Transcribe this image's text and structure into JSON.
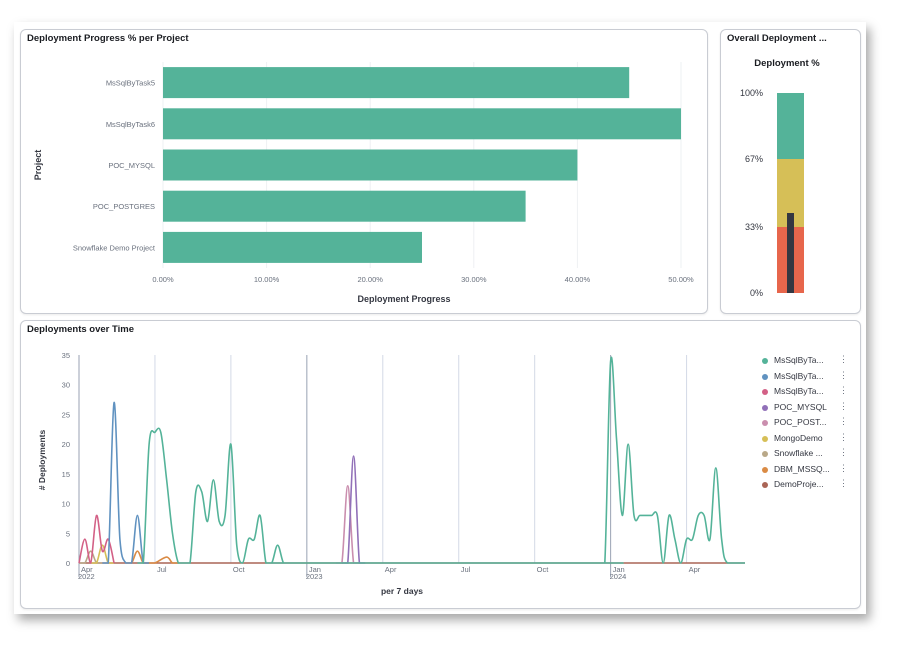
{
  "panels": {
    "progress": {
      "title": "Deployment Progress % per Project"
    },
    "overall": {
      "title": "Overall Deployment ...",
      "gauge_title": "Deployment %"
    },
    "time": {
      "title": "Deployments over Time"
    }
  },
  "colors": {
    "bar": "#54b399",
    "gauge_green": "#54b399",
    "gauge_yellow": "#d6bf57",
    "gauge_red": "#e7664c",
    "gauge_needle": "#343741"
  },
  "chart_data": [
    {
      "type": "bar",
      "orientation": "horizontal",
      "categories": [
        "MsSqlByTask5",
        "MsSqlByTask6",
        "POC_MYSQL",
        "POC_POSTGRES",
        "Snowflake Demo Project"
      ],
      "values": [
        0.45,
        0.5,
        0.4,
        0.35,
        0.25
      ],
      "xlabel": "Deployment Progress",
      "ylabel": "Project",
      "xlim": [
        0,
        0.5
      ],
      "xticks": [
        "0.00%",
        "10.00%",
        "20.00%",
        "30.00%",
        "40.00%",
        "50.00%"
      ],
      "grid": true
    },
    {
      "type": "gauge",
      "title": "Deployment %",
      "value": 0.4,
      "bands": [
        {
          "from": 0,
          "to": 0.33,
          "color": "#e7664c"
        },
        {
          "from": 0.33,
          "to": 0.67,
          "color": "#d6bf57"
        },
        {
          "from": 0.67,
          "to": 1.0,
          "color": "#54b399"
        }
      ],
      "ticks": [
        "0%",
        "33%",
        "67%",
        "100%"
      ]
    },
    {
      "type": "line",
      "xlabel": "per 7 days",
      "ylabel": "# Deployments",
      "ylim": [
        0,
        35
      ],
      "yticks": [
        0,
        5,
        10,
        15,
        20,
        25,
        30,
        35
      ],
      "x_ticks": [
        {
          "label": "Apr",
          "sub": "2022",
          "w": 0
        },
        {
          "label": "Jul",
          "sub": "",
          "w": 13
        },
        {
          "label": "Oct",
          "sub": "",
          "w": 26
        },
        {
          "label": "Jan",
          "sub": "2023",
          "w": 39
        },
        {
          "label": "Apr",
          "sub": "",
          "w": 52
        },
        {
          "label": "Jul",
          "sub": "",
          "w": 65
        },
        {
          "label": "Oct",
          "sub": "",
          "w": 78
        },
        {
          "label": "Jan",
          "sub": "2024",
          "w": 91
        },
        {
          "label": "Apr",
          "sub": "",
          "w": 104
        }
      ],
      "x_range_weeks": [
        0,
        114
      ],
      "legend_position": "right",
      "series": [
        {
          "name": "MsSqlByTa...",
          "color": "#54b399",
          "points": [
            [
              10,
              0
            ],
            [
              11,
              0
            ],
            [
              12,
              20
            ],
            [
              13,
              22
            ],
            [
              14,
              22
            ],
            [
              15,
              14
            ],
            [
              16,
              5
            ],
            [
              17,
              0
            ],
            [
              18,
              0
            ],
            [
              19,
              0
            ],
            [
              20,
              12
            ],
            [
              21,
              12
            ],
            [
              22,
              7
            ],
            [
              23,
              14
            ],
            [
              24,
              7
            ],
            [
              25,
              8
            ],
            [
              26,
              20
            ],
            [
              27,
              3
            ],
            [
              28,
              0
            ],
            [
              29,
              4
            ],
            [
              30,
              4
            ],
            [
              31,
              8
            ],
            [
              32,
              0
            ],
            [
              33,
              0
            ],
            [
              34,
              3
            ],
            [
              35,
              0
            ],
            [
              36,
              0
            ],
            [
              37,
              0
            ],
            [
              89,
              0
            ],
            [
              90,
              0
            ],
            [
              91,
              34
            ],
            [
              92,
              21
            ],
            [
              93,
              8
            ],
            [
              94,
              20
            ],
            [
              95,
              8
            ],
            [
              96,
              8
            ],
            [
              97,
              8
            ],
            [
              98,
              8
            ],
            [
              99,
              8
            ],
            [
              100,
              0
            ],
            [
              101,
              8
            ],
            [
              102,
              4
            ],
            [
              103,
              0
            ],
            [
              104,
              4
            ],
            [
              105,
              4
            ],
            [
              106,
              8
            ],
            [
              107,
              8
            ],
            [
              108,
              4
            ],
            [
              109,
              16
            ],
            [
              110,
              4
            ],
            [
              111,
              0
            ],
            [
              114,
              0
            ]
          ]
        },
        {
          "name": "MsSqlByTa...",
          "color": "#6092c0",
          "points": [
            [
              4,
              0
            ],
            [
              5,
              0
            ],
            [
              6,
              27
            ],
            [
              7,
              4
            ],
            [
              8,
              0
            ],
            [
              9,
              0
            ],
            [
              10,
              8
            ],
            [
              11,
              0
            ],
            [
              12,
              0
            ]
          ]
        },
        {
          "name": "MsSqlByTa...",
          "color": "#d36086",
          "points": [
            [
              0,
              0
            ],
            [
              1,
              4
            ],
            [
              2,
              0
            ],
            [
              3,
              8
            ],
            [
              4,
              2
            ],
            [
              5,
              4
            ],
            [
              6,
              0
            ]
          ]
        },
        {
          "name": "POC_MYSQL",
          "color": "#9170b8",
          "points": [
            [
              45,
              0
            ],
            [
              46,
              0
            ],
            [
              47,
              18
            ],
            [
              48,
              0
            ],
            [
              49,
              0
            ]
          ]
        },
        {
          "name": "POC_POST...",
          "color": "#ca8eae",
          "points": [
            [
              44,
              0
            ],
            [
              45,
              0
            ],
            [
              46,
              13
            ],
            [
              47,
              0
            ],
            [
              48,
              0
            ]
          ]
        },
        {
          "name": "MongoDemo",
          "color": "#d6bf57",
          "points": [
            [
              2,
              0
            ],
            [
              3,
              0
            ],
            [
              4,
              3
            ],
            [
              5,
              0
            ],
            [
              6,
              0
            ]
          ]
        },
        {
          "name": "Snowflake ...",
          "color": "#b9a888",
          "points": [
            [
              0,
              0
            ],
            [
              1,
              0
            ],
            [
              2,
              2
            ],
            [
              3,
              0
            ],
            [
              4,
              0
            ]
          ]
        },
        {
          "name": "DBM_MSSQ...",
          "color": "#da8b45",
          "points": [
            [
              8,
              0
            ],
            [
              9,
              0
            ],
            [
              10,
              2
            ],
            [
              11,
              0
            ],
            [
              12,
              0
            ],
            [
              13,
              0
            ],
            [
              15,
              1
            ],
            [
              16,
              0
            ],
            [
              17,
              0
            ]
          ]
        },
        {
          "name": "DemoProje...",
          "color": "#aa6556",
          "points": [
            [
              0,
              0
            ],
            [
              114,
              0
            ]
          ]
        }
      ]
    }
  ]
}
